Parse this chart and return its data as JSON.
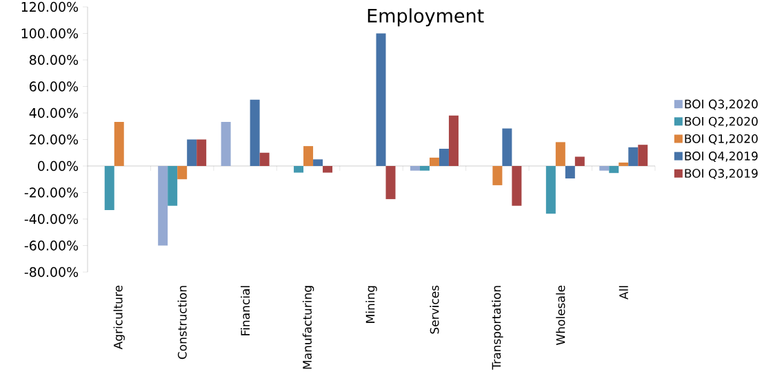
{
  "chart_data": {
    "type": "bar",
    "title": "Employment",
    "categories": [
      "Agriculture",
      "Construction",
      "Financial",
      "Manufacturing",
      "Mining",
      "Services",
      "Transportation",
      "Wholesale",
      "All"
    ],
    "series": [
      {
        "name": "BOI Q3,2020",
        "color": "#95a9d2",
        "values": [
          0,
          -60,
          33.3,
          0,
          0,
          -3.5,
          0,
          0,
          -3.5
        ]
      },
      {
        "name": "BOI Q2,2020",
        "color": "#4299b0",
        "values": [
          -33.3,
          -30,
          0,
          -5,
          0,
          -3.5,
          0,
          -36,
          -5.3
        ]
      },
      {
        "name": "BOI Q1,2020",
        "color": "#dc843e",
        "values": [
          33.3,
          -10,
          0,
          15,
          0,
          6.3,
          -14.5,
          18,
          2.6
        ]
      },
      {
        "name": "BOI Q4,2019",
        "color": "#4673a8",
        "values": [
          0,
          20,
          50,
          5,
          100,
          13,
          28.3,
          -9.4,
          14.1
        ]
      },
      {
        "name": "BOI Q3,2019",
        "color": "#a84545",
        "values": [
          0,
          20,
          10,
          -5,
          -25,
          38,
          -30,
          7,
          16
        ]
      }
    ],
    "ylim": [
      -80,
      120
    ],
    "yticks": [
      {
        "value": -80,
        "label": "-80.00%"
      },
      {
        "value": -60,
        "label": "-60.00%"
      },
      {
        "value": -40,
        "label": "-40.00%"
      },
      {
        "value": -20,
        "label": "-20.00%"
      },
      {
        "value": 0,
        "label": "0.00%"
      },
      {
        "value": 20,
        "label": "20.00%"
      },
      {
        "value": 40,
        "label": "40.00%"
      },
      {
        "value": 60,
        "label": "60.00%"
      },
      {
        "value": 80,
        "label": "80.00%"
      },
      {
        "value": 100,
        "label": "100.00%"
      },
      {
        "value": 120,
        "label": "120.00%"
      }
    ],
    "legend": "right"
  }
}
